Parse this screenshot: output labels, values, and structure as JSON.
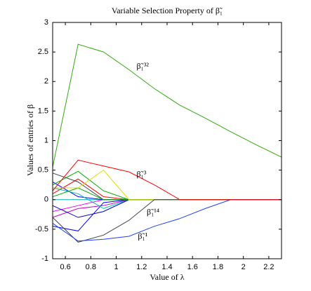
{
  "chart_data": {
    "type": "line",
    "title": "Variable Selection Property of β̃₁",
    "x_label": "Value of λ",
    "y_label": "Values of entries of β",
    "annotations": [
      "β̃₁³²",
      "β̃₁³",
      "β̃₁¹⁴",
      "β̃₁¹"
    ],
    "x": [
      0.5,
      0.7,
      0.9,
      1.1,
      1.3,
      1.5,
      1.7,
      1.9,
      2.1,
      2.3
    ],
    "series": [
      {
        "color": "#00aaaa",
        "values": [
          0,
          0,
          0,
          0,
          0,
          0,
          0,
          0,
          0,
          0
        ]
      },
      {
        "color": "#0000ff",
        "values": [
          0.3,
          0.05,
          0,
          0,
          0,
          0,
          0,
          0,
          0,
          0
        ]
      },
      {
        "color": "#ff00ff",
        "values": [
          -0.2,
          -0.1,
          0,
          0,
          0,
          0,
          0,
          0,
          0,
          0
        ]
      },
      {
        "color": "#00aa00",
        "values": [
          0.25,
          0.48,
          0.15,
          0,
          0,
          0,
          0,
          0,
          0,
          0
        ]
      },
      {
        "color": "#ff0000",
        "values": [
          0.1,
          0.35,
          0.05,
          0,
          0,
          0,
          0,
          0,
          0,
          0
        ]
      },
      {
        "color": "#0000ff",
        "values": [
          -0.45,
          -0.53,
          -0.05,
          0,
          0,
          0,
          0,
          0,
          0,
          0
        ]
      },
      {
        "color": "#444444",
        "values": [
          0.45,
          0.3,
          0,
          0,
          0,
          0,
          0,
          0,
          0,
          0
        ]
      },
      {
        "color": "#cc00cc",
        "values": [
          -0.3,
          -0.15,
          -0.1,
          0,
          0,
          0,
          0,
          0,
          0,
          0
        ]
      },
      {
        "color": "#00bbbb",
        "values": [
          0.2,
          0.1,
          -0.15,
          0,
          0,
          0,
          0,
          0,
          0,
          0
        ]
      },
      {
        "color": "#0000cc",
        "values": [
          -0.1,
          -0.3,
          -0.2,
          0,
          0,
          0,
          0,
          0,
          0,
          0
        ]
      },
      {
        "color": "#00aa00",
        "values": [
          0.05,
          0.2,
          0,
          0,
          0,
          0,
          0,
          0,
          0,
          0
        ]
      },
      {
        "color": "#dddd00",
        "values": [
          0.2,
          0.2,
          0.5,
          0,
          0,
          0,
          0,
          0,
          0,
          0
        ]
      },
      {
        "color": "#444444",
        "values": [
          -0.3,
          -0.72,
          -0.6,
          -0.35,
          0,
          0,
          0,
          0,
          0,
          0
        ]
      },
      {
        "color": "#2040ff",
        "values": [
          -0.4,
          -0.7,
          -0.67,
          -0.62,
          -0.45,
          -0.32,
          -0.15,
          0,
          0,
          0
        ]
      },
      {
        "color": "#ff0000",
        "values": [
          0.15,
          0.67,
          0.57,
          0.47,
          0.25,
          0,
          0,
          0,
          0,
          0
        ]
      },
      {
        "color": "#33aa11",
        "values": [
          0.55,
          2.63,
          2.5,
          2.2,
          1.88,
          1.6,
          1.38,
          1.15,
          0.93,
          0.72
        ]
      }
    ],
    "xlim": [
      0.5,
      2.3
    ],
    "xticks": [
      0.6,
      0.8,
      1,
      1.2,
      1.4,
      1.6,
      1.8,
      2,
      2.2
    ],
    "ylim": [
      -1,
      3
    ],
    "yticks": [
      -1,
      -0.5,
      0,
      0.5,
      1,
      1.5,
      2,
      2.5,
      3
    ],
    "grid": false
  }
}
